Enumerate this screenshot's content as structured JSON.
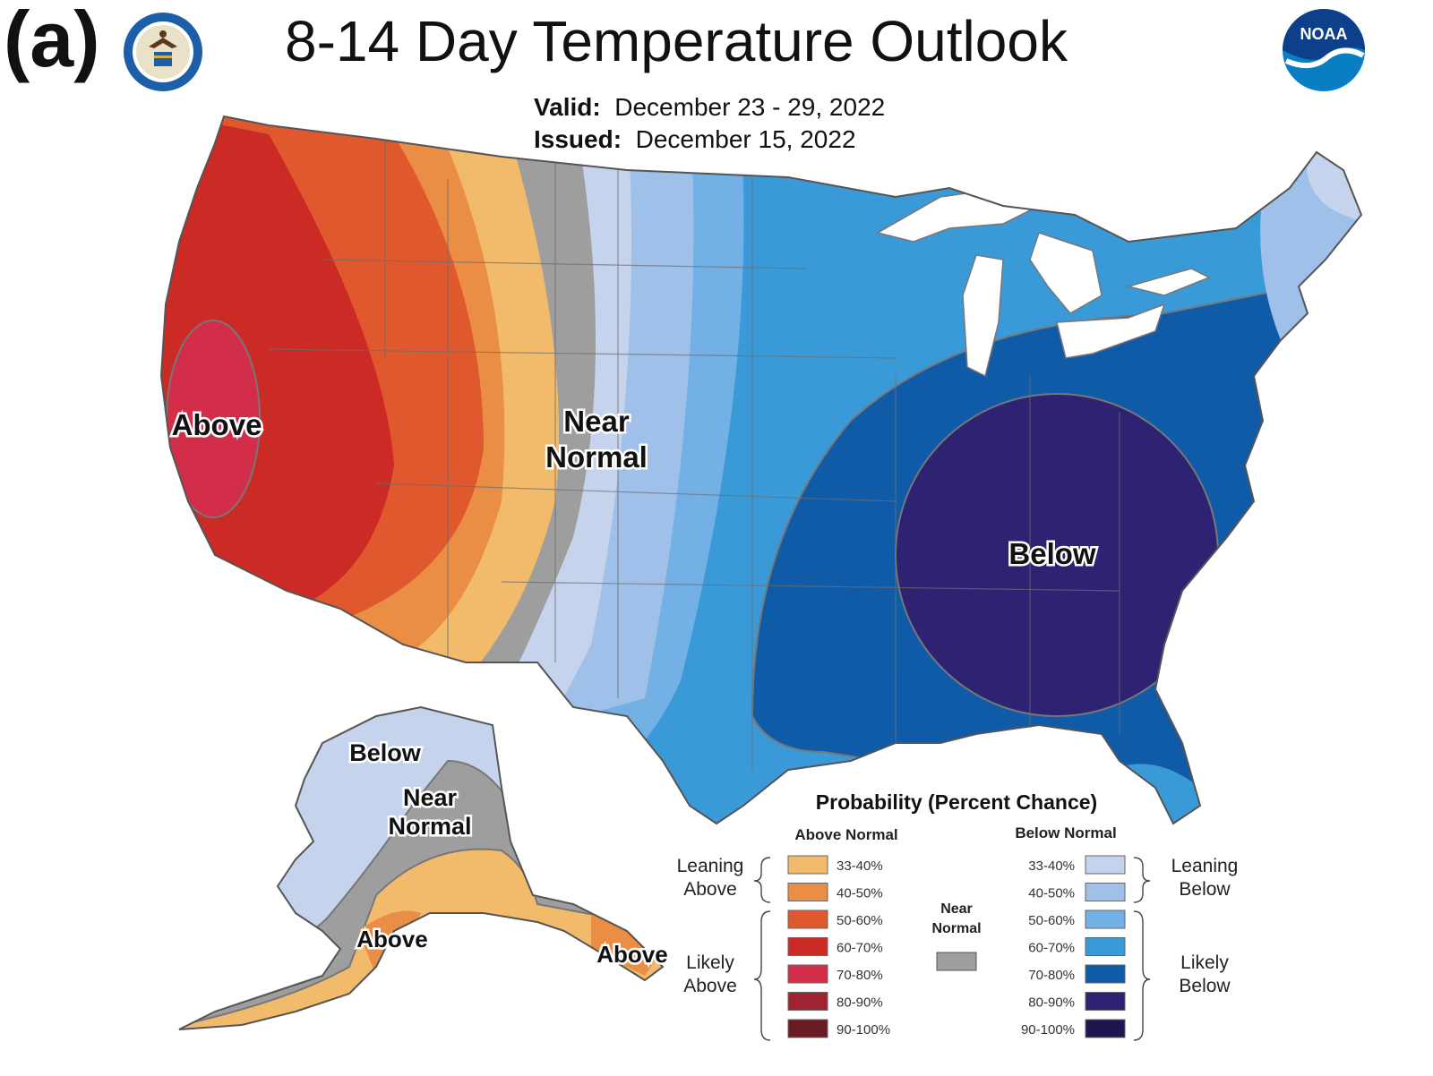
{
  "panel_label": "(a)",
  "title": "8-14 Day Temperature Outlook",
  "valid_label": "Valid:",
  "valid_value": "December 23 - 29, 2022",
  "issued_label": "Issued:",
  "issued_value": "December 15, 2022",
  "logos": {
    "left": "doc-seal-icon",
    "right": "noaa-logo-icon",
    "right_text": "NOAA"
  },
  "colors": {
    "above": {
      "33-40%": "#f2bb6b",
      "40-50%": "#ea8e45",
      "50-60%": "#e0582e",
      "60-70%": "#cc2a24",
      "70-80%": "#d22e4a",
      "80-90%": "#9e2432",
      "90-100%": "#6a1a22"
    },
    "near": "#9e9e9e",
    "below": {
      "33-40%": "#c6d3ec",
      "40-50%": "#9fc0e8",
      "50-60%": "#73b0e6",
      "60-70%": "#3a9ad8",
      "70-80%": "#0f5ba8",
      "80-90%": "#2e2272",
      "90-100%": "#1e1650"
    },
    "land_empty": "#ffffff",
    "borders": "#555555"
  },
  "map_labels": {
    "conus_above": "Above",
    "conus_near_1": "Near",
    "conus_near_2": "Normal",
    "conus_below": "Below",
    "ak_below": "Below",
    "ak_near_1": "Near",
    "ak_near_2": "Normal",
    "ak_above": "Above",
    "ak_above_se": "Above"
  },
  "legend": {
    "title": "Probability (Percent Chance)",
    "above_header": "Above Normal",
    "below_header": "Below Normal",
    "above_items": [
      "33-40%",
      "40-50%",
      "50-60%",
      "60-70%",
      "70-80%",
      "80-90%",
      "90-100%"
    ],
    "below_items": [
      "33-40%",
      "40-50%",
      "50-60%",
      "60-70%",
      "70-80%",
      "80-90%",
      "90-100%"
    ],
    "leaning_above_1": "Leaning",
    "leaning_above_2": "Above",
    "likely_above_1": "Likely",
    "likely_above_2": "Above",
    "leaning_below_1": "Leaning",
    "leaning_below_2": "Below",
    "likely_below_1": "Likely",
    "likely_below_2": "Below",
    "near_1": "Near",
    "near_2": "Normal"
  }
}
